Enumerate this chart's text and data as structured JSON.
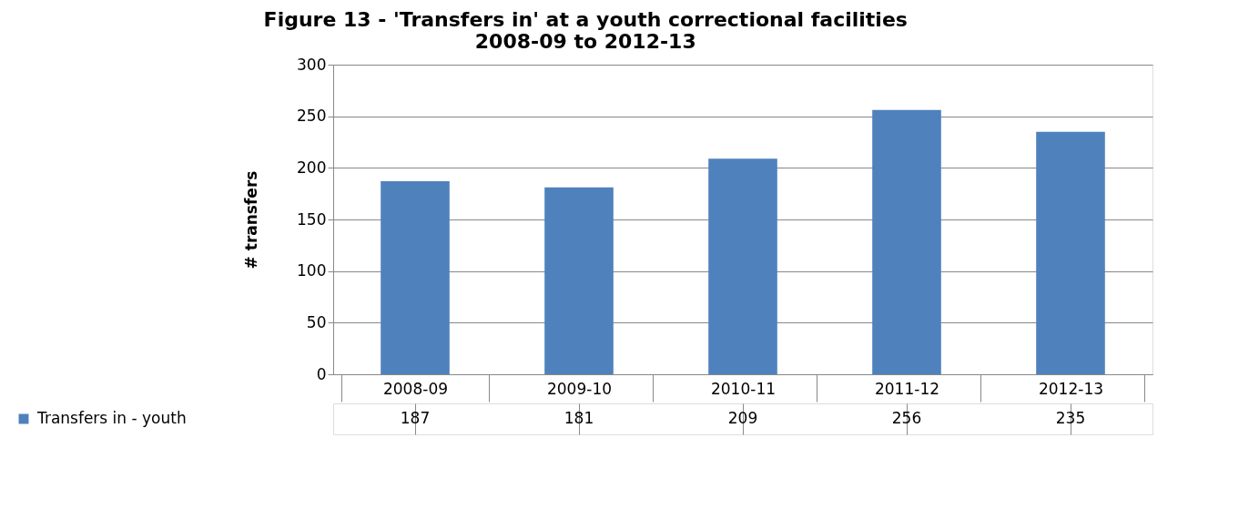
{
  "chart_data": {
    "type": "bar",
    "title": [
      "Figure 13 - 'Transfers in' at a youth correctional facilities",
      "2008-09 to 2012-13"
    ],
    "ylabel": "# transfers",
    "categories": [
      "2008-09",
      "2009-10",
      "2010-11",
      "2011-12",
      "2012-13"
    ],
    "series": [
      {
        "name": "Transfers in - youth",
        "color": "#4f81bd",
        "values": [
          187,
          181,
          209,
          256,
          235
        ]
      }
    ],
    "ylim": [
      0,
      300
    ],
    "yticks": [
      0,
      50,
      100,
      150,
      200,
      250,
      300
    ],
    "grid": "y",
    "legend": "bottom",
    "data_labels": true
  }
}
